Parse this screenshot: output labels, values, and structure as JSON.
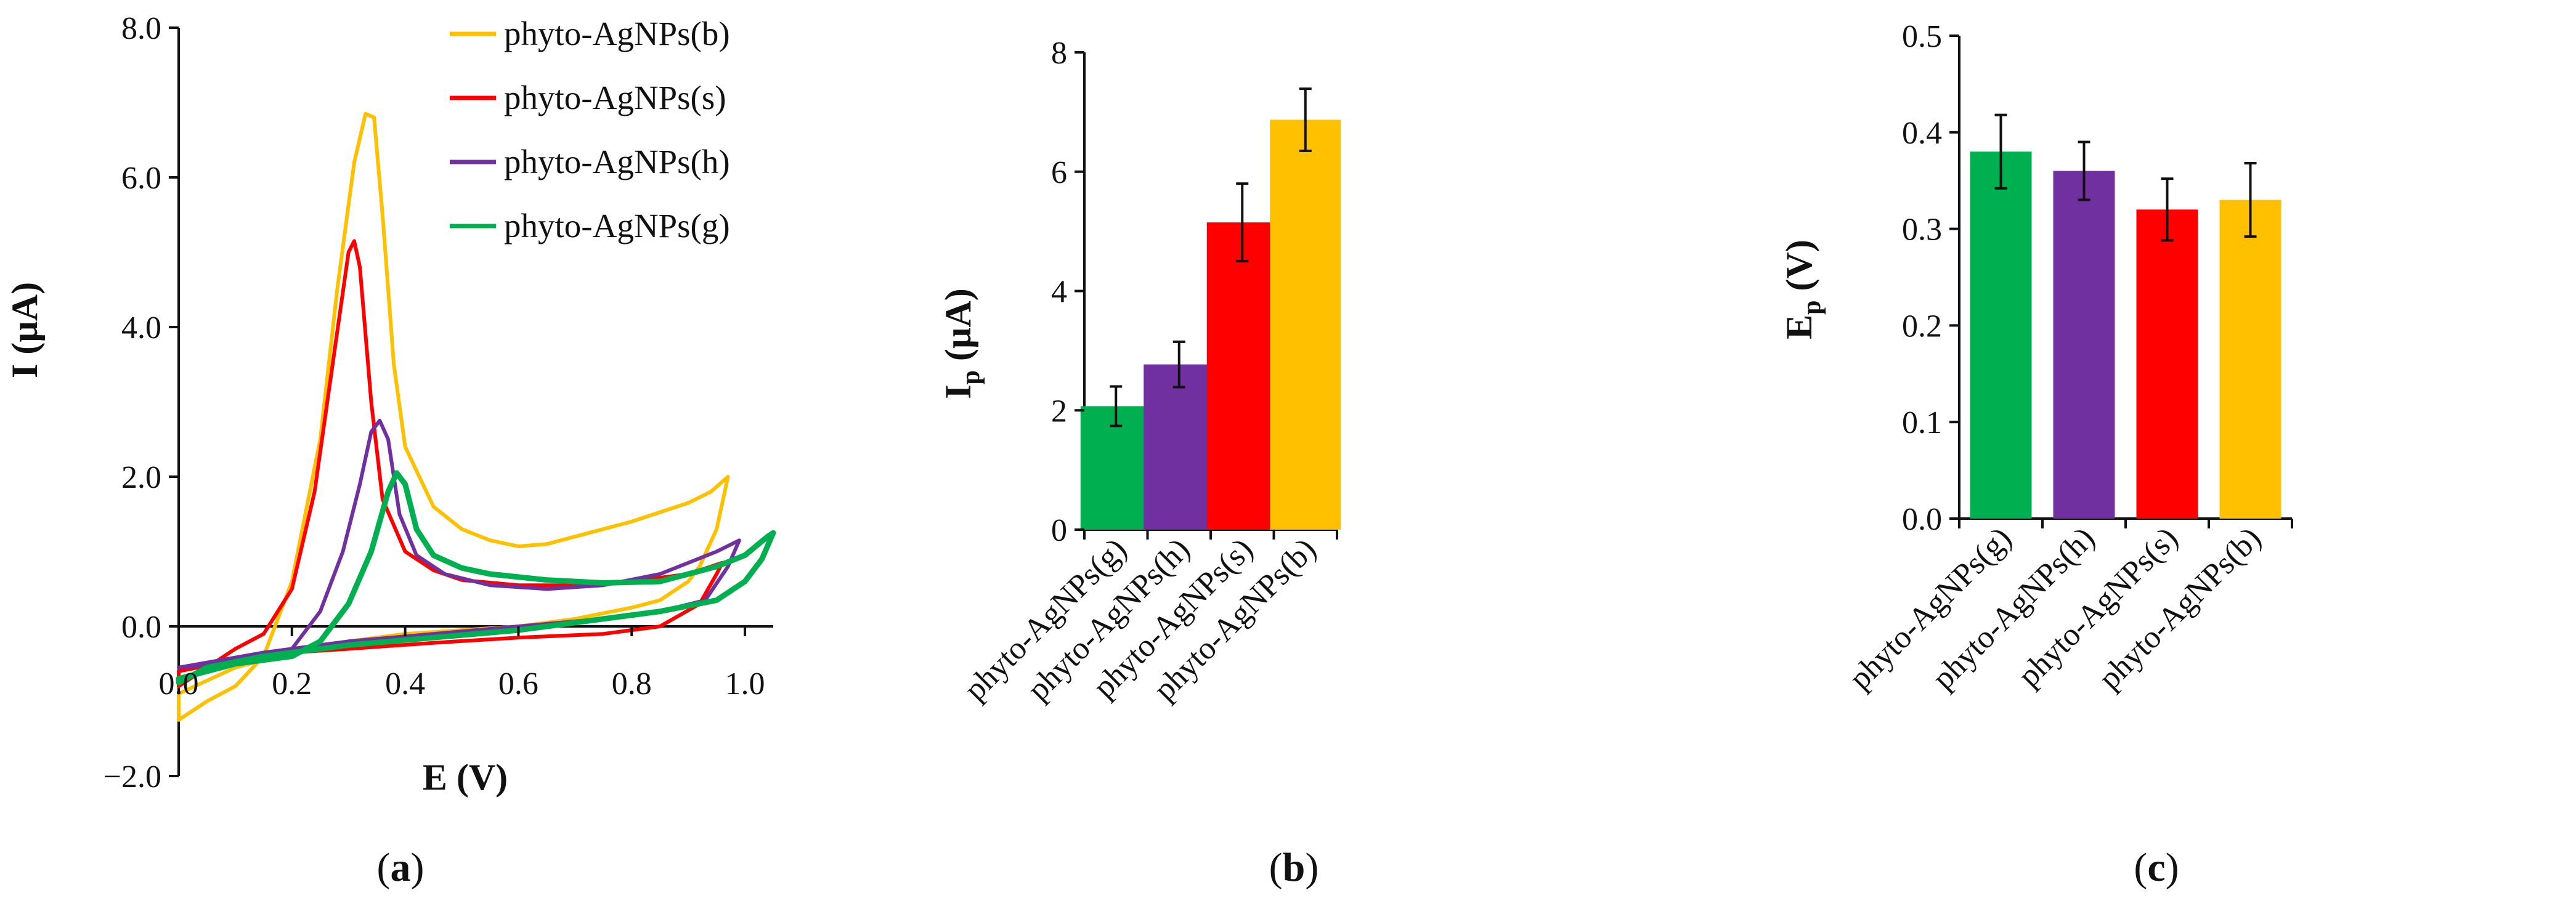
{
  "chart_data": [
    {
      "type": "line",
      "caption": "a",
      "xlabel": "E (V)",
      "ylabel": "I (µA)",
      "xlim": [
        0.0,
        1.05
      ],
      "ylim": [
        -2.0,
        8.0
      ],
      "xticks": [
        "0.0",
        "0.2",
        "0.4",
        "0.6",
        "0.8",
        "1.0"
      ],
      "xtick_values": [
        0.0,
        0.2,
        0.4,
        0.6,
        0.8,
        1.0
      ],
      "yticks": [
        "−2.0",
        "0.0",
        "2.0",
        "4.0",
        "6.0",
        "8.0"
      ],
      "ytick_values": [
        -2.0,
        0.0,
        2.0,
        4.0,
        6.0,
        8.0
      ],
      "legend_position": "top-right",
      "series": [
        {
          "name": "phyto-AgNPs(b)",
          "color": "#ffc000",
          "points": [
            [
              0.0,
              -1.25
            ],
            [
              0.05,
              -1.0
            ],
            [
              0.1,
              -0.8
            ],
            [
              0.15,
              -0.4
            ],
            [
              0.2,
              0.6
            ],
            [
              0.25,
              2.5
            ],
            [
              0.28,
              4.5
            ],
            [
              0.31,
              6.2
            ],
            [
              0.33,
              6.85
            ],
            [
              0.345,
              6.8
            ],
            [
              0.36,
              5.5
            ],
            [
              0.38,
              3.5
            ],
            [
              0.4,
              2.4
            ],
            [
              0.45,
              1.6
            ],
            [
              0.5,
              1.3
            ],
            [
              0.55,
              1.15
            ],
            [
              0.6,
              1.07
            ],
            [
              0.65,
              1.1
            ],
            [
              0.7,
              1.2
            ],
            [
              0.8,
              1.4
            ],
            [
              0.9,
              1.65
            ],
            [
              0.94,
              1.8
            ],
            [
              0.97,
              2.0
            ],
            [
              0.95,
              1.3
            ],
            [
              0.92,
              0.8
            ],
            [
              0.9,
              0.6
            ],
            [
              0.85,
              0.35
            ],
            [
              0.8,
              0.25
            ],
            [
              0.7,
              0.1
            ],
            [
              0.6,
              0.0
            ],
            [
              0.5,
              -0.05
            ],
            [
              0.4,
              -0.1
            ],
            [
              0.3,
              -0.2
            ],
            [
              0.2,
              -0.35
            ],
            [
              0.1,
              -0.55
            ],
            [
              0.0,
              -0.9
            ]
          ]
        },
        {
          "name": "phyto-AgNPs(s)",
          "color": "#ff0000",
          "points": [
            [
              0.0,
              -0.8
            ],
            [
              0.05,
              -0.55
            ],
            [
              0.1,
              -0.3
            ],
            [
              0.15,
              -0.1
            ],
            [
              0.2,
              0.5
            ],
            [
              0.24,
              1.8
            ],
            [
              0.27,
              3.4
            ],
            [
              0.3,
              5.0
            ],
            [
              0.31,
              5.15
            ],
            [
              0.32,
              4.8
            ],
            [
              0.34,
              3.0
            ],
            [
              0.36,
              1.7
            ],
            [
              0.4,
              1.0
            ],
            [
              0.45,
              0.75
            ],
            [
              0.5,
              0.62
            ],
            [
              0.6,
              0.55
            ],
            [
              0.7,
              0.55
            ],
            [
              0.8,
              0.6
            ],
            [
              0.9,
              0.7
            ],
            [
              0.96,
              0.85
            ],
            [
              0.95,
              0.7
            ],
            [
              0.92,
              0.3
            ],
            [
              0.85,
              0.0
            ],
            [
              0.75,
              -0.1
            ],
            [
              0.6,
              -0.15
            ],
            [
              0.45,
              -0.22
            ],
            [
              0.3,
              -0.3
            ],
            [
              0.2,
              -0.35
            ],
            [
              0.1,
              -0.45
            ],
            [
              0.0,
              -0.6
            ]
          ]
        },
        {
          "name": "phyto-AgNPs(h)",
          "color": "#7030a0",
          "points": [
            [
              0.0,
              -0.55
            ],
            [
              0.08,
              -0.5
            ],
            [
              0.15,
              -0.45
            ],
            [
              0.2,
              -0.3
            ],
            [
              0.25,
              0.2
            ],
            [
              0.29,
              1.0
            ],
            [
              0.32,
              1.9
            ],
            [
              0.34,
              2.6
            ],
            [
              0.355,
              2.75
            ],
            [
              0.37,
              2.5
            ],
            [
              0.39,
              1.5
            ],
            [
              0.42,
              0.95
            ],
            [
              0.47,
              0.7
            ],
            [
              0.55,
              0.55
            ],
            [
              0.65,
              0.5
            ],
            [
              0.75,
              0.55
            ],
            [
              0.85,
              0.7
            ],
            [
              0.95,
              1.0
            ],
            [
              0.99,
              1.15
            ],
            [
              0.97,
              0.8
            ],
            [
              0.93,
              0.35
            ],
            [
              0.85,
              0.2
            ],
            [
              0.75,
              0.1
            ],
            [
              0.6,
              0.0
            ],
            [
              0.45,
              -0.1
            ],
            [
              0.3,
              -0.2
            ],
            [
              0.15,
              -0.35
            ],
            [
              0.0,
              -0.55
            ]
          ]
        },
        {
          "name": "phyto-AgNPs(g)",
          "color": "#00b050",
          "points": [
            [
              0.0,
              -0.7
            ],
            [
              0.05,
              -0.6
            ],
            [
              0.1,
              -0.5
            ],
            [
              0.15,
              -0.45
            ],
            [
              0.2,
              -0.4
            ],
            [
              0.25,
              -0.2
            ],
            [
              0.3,
              0.3
            ],
            [
              0.34,
              1.0
            ],
            [
              0.37,
              1.8
            ],
            [
              0.385,
              2.05
            ],
            [
              0.4,
              1.9
            ],
            [
              0.42,
              1.3
            ],
            [
              0.45,
              0.95
            ],
            [
              0.5,
              0.78
            ],
            [
              0.55,
              0.7
            ],
            [
              0.65,
              0.62
            ],
            [
              0.75,
              0.58
            ],
            [
              0.85,
              0.6
            ],
            [
              0.95,
              0.8
            ],
            [
              1.0,
              0.95
            ],
            [
              1.04,
              1.2
            ],
            [
              1.05,
              1.25
            ],
            [
              1.03,
              0.9
            ],
            [
              1.0,
              0.6
            ],
            [
              0.95,
              0.35
            ],
            [
              0.85,
              0.2
            ],
            [
              0.75,
              0.1
            ],
            [
              0.6,
              -0.05
            ],
            [
              0.45,
              -0.15
            ],
            [
              0.3,
              -0.25
            ],
            [
              0.15,
              -0.4
            ],
            [
              0.05,
              -0.55
            ],
            [
              0.0,
              -0.75
            ]
          ]
        }
      ]
    },
    {
      "type": "bar",
      "caption": "b",
      "ylabel": "I",
      "ylabel_sub": "p",
      "ylabel_unit": " (µA)",
      "ylim": [
        0,
        8
      ],
      "yticks": [
        "0",
        "2",
        "4",
        "6",
        "8"
      ],
      "ytick_values": [
        0,
        2,
        4,
        6,
        8
      ],
      "categories": [
        "phyto-AgNPs(g)",
        "phyto-AgNPs(h)",
        "phyto-AgNPs(s)",
        "phyto-AgNPs(b)"
      ],
      "values": [
        2.07,
        2.77,
        5.15,
        6.87
      ],
      "errors": [
        0.33,
        0.38,
        0.65,
        0.52
      ],
      "colors": [
        "#00b050",
        "#7030a0",
        "#ff0000",
        "#ffc000"
      ]
    },
    {
      "type": "bar",
      "caption": "c",
      "ylabel": "E",
      "ylabel_sub": "p",
      "ylabel_unit": " (V)",
      "ylim": [
        0.0,
        0.5
      ],
      "yticks": [
        "0.0",
        "0.1",
        "0.2",
        "0.3",
        "0.4",
        "0.5"
      ],
      "ytick_values": [
        0.0,
        0.1,
        0.2,
        0.3,
        0.4,
        0.5
      ],
      "categories": [
        "phyto-AgNPs(g)",
        "phyto-AgNPs(h)",
        "phyto-AgNPs(s)",
        "phyto-AgNPs(b)"
      ],
      "values": [
        0.38,
        0.36,
        0.32,
        0.33
      ],
      "errors": [
        0.038,
        0.03,
        0.032,
        0.038
      ],
      "colors": [
        "#00b050",
        "#7030a0",
        "#ff0000",
        "#ffc000"
      ]
    }
  ]
}
